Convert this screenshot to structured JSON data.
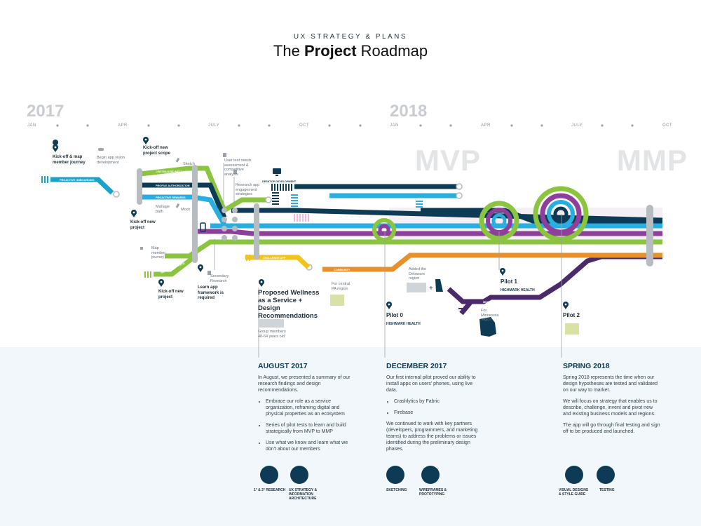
{
  "header": {
    "eyebrow": "UX STRATEGY & PLANS",
    "title_prefix": "The ",
    "title_bold": "Project",
    "title_suffix": " Roadmap"
  },
  "timeline": {
    "years": [
      "2017",
      "2018"
    ],
    "months_2017": [
      "JAN",
      "APR",
      "JULY",
      "OCT"
    ],
    "months_2018": [
      "JAN",
      "APR",
      "JULY",
      "OCT"
    ]
  },
  "phases": {
    "mvp": "MVP",
    "mmp": "MMP"
  },
  "line_labels": {
    "l1": "PROACTIVE ONBOARDING",
    "l2": "CENTRALIZED MESSAGING",
    "l3": "PROFILE AUTHORIZATION",
    "l4": "PROACTIVE REWARDS",
    "l5": "DESKTOP DEVELOPMENT",
    "l6": "MOBILE APP",
    "l7": "MEMBERSHIP PATH",
    "l8": "CHALLENGE APP",
    "l9": "COMMUNITY"
  },
  "milestones": {
    "kickoff_map": "Kick-off & map member journey",
    "begin_app": "Begin app vision development",
    "kickoff_scope": "Kick-off new project scope",
    "kickoff_project1": "Kick-off new project",
    "kickoff_project2": "Kick-off new project",
    "learn_app": "Learn app framework is required",
    "proposed": "Proposed Wellness as a Service + Design Recommendations"
  },
  "notes": {
    "sketch": "Sketch",
    "manage": "Manage path",
    "mock": "Mock",
    "user_test": "User test needs assessment & competitive analysis",
    "research_app": "Research app engagement strategies",
    "map_journey": "Map member journey",
    "secondary": "Secondary Research",
    "central_pa": "For central PA region",
    "added_delaware": "Added the Delaware region",
    "minnesota_label": "MINNESOTA",
    "minnesota_note": "For Minnesota region",
    "group_members": "Group members 40-64 years old"
  },
  "pilots": {
    "p0": "Pilot 0",
    "p1": "Pilot 1",
    "p2": "Pilot 2",
    "brand": "HIGHMARK HEALTH"
  },
  "sections": {
    "aug": {
      "title": "AUGUST 2017",
      "intro": "In August, we presented a summary of our research findings and design recommendations.",
      "bullets": [
        "Embrace our role as a service organization, reframing digital and physical properties as an ecosystem",
        "Series of pilot tests to learn and build strategically from MVP to MMP",
        "Use what we know and learn what we don't about our members"
      ]
    },
    "dec": {
      "title": "DECEMBER 2017",
      "intro": "Our first internal pilot proved our ability to install apps on users' phones, using live data.",
      "bullets": [
        "Crashlytics by Fabric",
        "Firebase"
      ],
      "outro": "We continued to work with key partners (developers, programmers, and marketing teams) to address the problems or issues identified during the preliminary design phases."
    },
    "spring": {
      "title": "SPRING 2018",
      "p1": "Spring 2018 represents the time when our design hypotheses are tested and validated on our way to market.",
      "p2": "We will focus on strategy that enables us to describe, challenge, invent and pivot new and existing business models and regions.",
      "p3": "The app will go through final testing and sign off to be produced and launched."
    }
  },
  "icons": {
    "research": "1° & 2° RESEARCH",
    "ux": "UX STRATEGY & INFORMATION ARCHITECTURE",
    "sketching": "SKETCHING",
    "wireframes": "WIREFRAMES & PROTOTYPING",
    "visual": "VISUAL DESIGNS & STYLE GUIDE",
    "testing": "TESTING"
  },
  "colors": {
    "navy": "#0d3a55",
    "teal": "#1aa3c9",
    "cyan": "#2aaee0",
    "green": "#8bc43f",
    "purple": "#8e3f9a",
    "darkpurple": "#4b2a6b",
    "orange": "#e8902a",
    "yellow": "#f2c318",
    "gray": "#b7bcc0"
  }
}
